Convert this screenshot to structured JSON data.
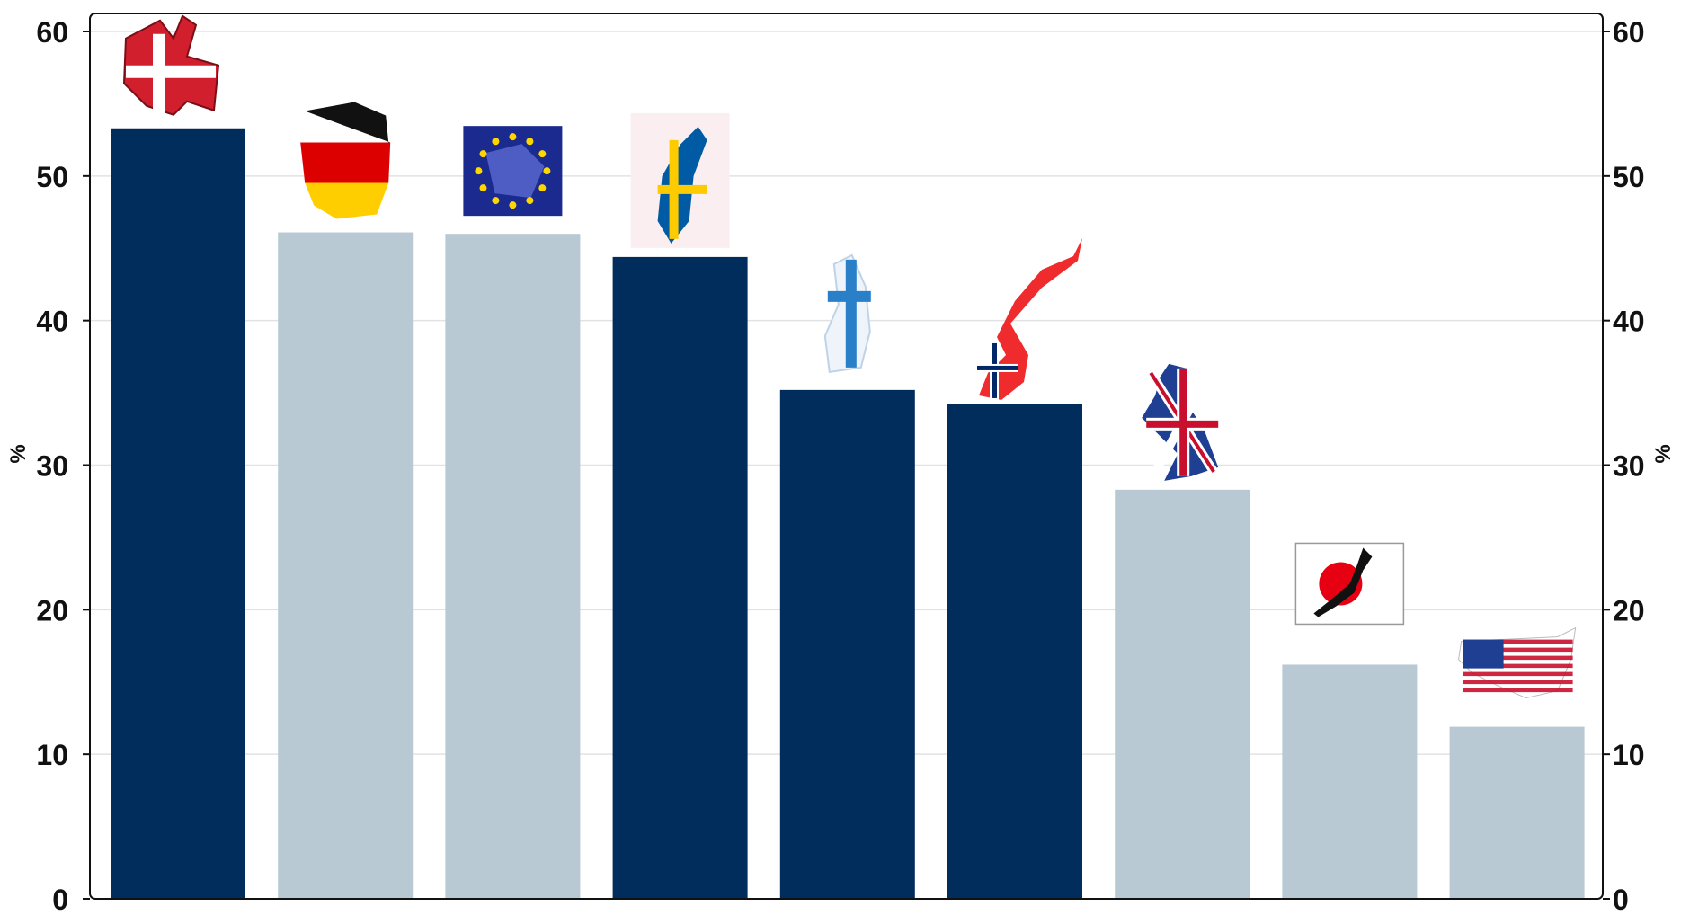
{
  "chart_data": {
    "type": "bar",
    "categories": [
      "Denmark",
      "Germany",
      "EU",
      "Sweden",
      "Finland",
      "Norway",
      "UK",
      "Japan",
      "USA"
    ],
    "values": [
      53.3,
      46.1,
      46.0,
      44.4,
      35.2,
      34.2,
      28.3,
      16.2,
      11.9
    ],
    "bar_colors": [
      "#002d5b",
      "#b8c9d3",
      "#b8c9d3",
      "#002d5b",
      "#002d5b",
      "#002d5b",
      "#b8c9d3",
      "#b8c9d3",
      "#b8c9d3"
    ],
    "icons": [
      "denmark-flag-map-icon",
      "germany-flag-map-icon",
      "eu-flag-map-icon",
      "sweden-flag-map-icon",
      "finland-flag-map-icon",
      "norway-flag-map-icon",
      "uk-flag-map-icon",
      "japan-flag-map-icon",
      "usa-flag-map-icon"
    ],
    "ylabel": "%",
    "ylabel_right": "%",
    "ylim": [
      0,
      60
    ],
    "yticks": [
      "0",
      "10",
      "20",
      "30",
      "40",
      "50",
      "60"
    ],
    "grid": true,
    "legend": "none"
  }
}
